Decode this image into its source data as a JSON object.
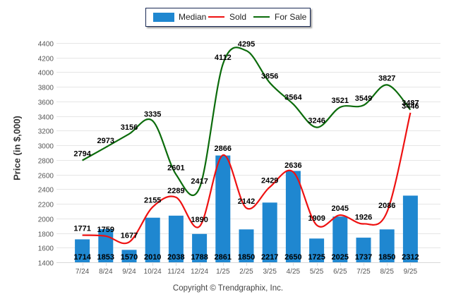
{
  "chart_data": {
    "type": "bar+line",
    "title": "",
    "xlabel": "",
    "ylabel": "Price (in $,000)",
    "ylim": [
      1400,
      4400
    ],
    "yticks": [
      1400,
      1600,
      1800,
      2000,
      2200,
      2400,
      2600,
      2800,
      3000,
      3200,
      3400,
      3600,
      3800,
      4000,
      4200,
      4400
    ],
    "grid": true,
    "legend_position": "top-center",
    "categories": [
      "7/24",
      "8/24",
      "9/24",
      "10/24",
      "11/24",
      "12/24",
      "1/25",
      "2/25",
      "3/25",
      "4/25",
      "5/25",
      "6/25",
      "7/25",
      "8/25",
      "9/25"
    ],
    "series": [
      {
        "name": "Median",
        "type": "bar",
        "color": "#1f87d0",
        "values": [
          1714,
          1853,
          1570,
          2010,
          2038,
          1788,
          2861,
          1850,
          2217,
          2650,
          1725,
          2025,
          1737,
          1850,
          2312
        ]
      },
      {
        "name": "Sold",
        "type": "line",
        "color": "#ee1111",
        "values": [
          1771,
          1759,
          1677,
          2155,
          2289,
          1890,
          2866,
          2142,
          2429,
          2636,
          1909,
          2045,
          1926,
          2086,
          3446
        ]
      },
      {
        "name": "For Sale",
        "type": "line",
        "color": "#0b6b0b",
        "values": [
          2794,
          2973,
          3156,
          3335,
          2601,
          2417,
          4112,
          4295,
          3856,
          3564,
          3246,
          3521,
          3549,
          3827,
          3487
        ]
      }
    ]
  },
  "legend": {
    "items": [
      {
        "label": "Median",
        "color": "#1f87d0"
      },
      {
        "label": "Sold",
        "color": "#ee1111"
      },
      {
        "label": "For Sale",
        "color": "#0b6b0b"
      }
    ]
  },
  "footer": {
    "copyright": "Copyright © Trendgraphix, Inc."
  }
}
